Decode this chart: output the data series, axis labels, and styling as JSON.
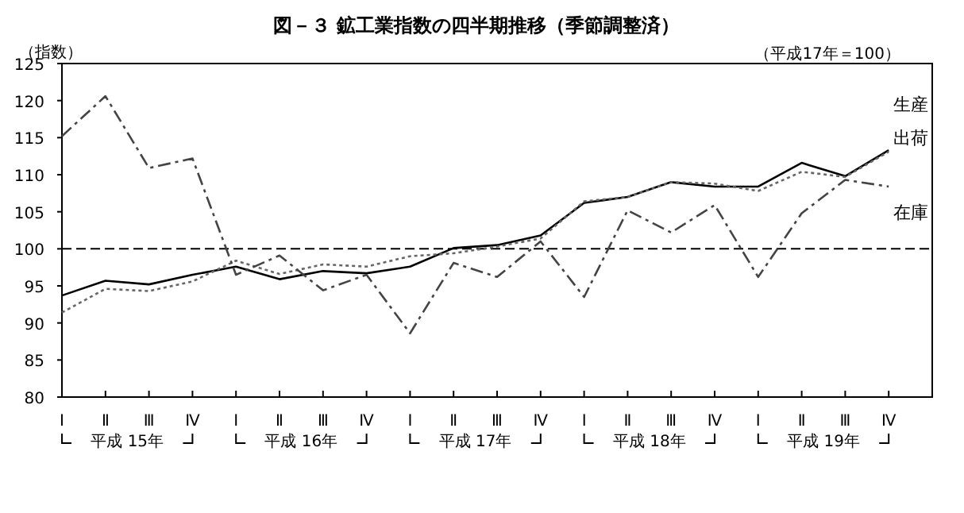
{
  "chart_data": {
    "type": "line",
    "title": "図－３ 鉱工業指数の四半期推移（季節調整済）",
    "ylabel": "（指数）",
    "categories": [
      "Ⅰ",
      "Ⅱ",
      "Ⅲ",
      "Ⅳ",
      "Ⅰ",
      "Ⅱ",
      "Ⅲ",
      "Ⅳ",
      "Ⅰ",
      "Ⅱ",
      "Ⅲ",
      "Ⅳ",
      "Ⅰ",
      "Ⅱ",
      "Ⅲ",
      "Ⅳ",
      "Ⅰ",
      "Ⅱ",
      "Ⅲ",
      "Ⅳ"
    ],
    "annotations": [
      "（平成17年＝100）",
      "平成 15年",
      "平成 16年",
      "平成 17年",
      "平成 18年",
      "平成 19年"
    ],
    "ylim": [
      80,
      125
    ],
    "yticks": [
      80,
      85,
      90,
      95,
      100,
      105,
      110,
      115,
      120,
      125
    ],
    "grid": false,
    "legend": false,
    "marker": "none",
    "ref_lines": [
      {
        "axis": "y",
        "value": 100,
        "line_style": "dashed",
        "color": "#000000"
      }
    ],
    "series": [
      {
        "name": "生産",
        "color": "#000000",
        "line_style": "solid",
        "values": [
          93.7,
          95.7,
          95.2,
          96.5,
          97.6,
          95.9,
          97.0,
          96.7,
          97.6,
          100.1,
          100.5,
          101.8,
          106.2,
          107.0,
          109.0,
          108.4,
          108.4,
          111.6,
          109.8,
          113.3
        ]
      },
      {
        "name": "出荷",
        "color": "#666666",
        "line_style": "dotted",
        "values": [
          91.4,
          94.6,
          94.3,
          95.6,
          98.4,
          96.6,
          97.9,
          97.6,
          99.0,
          99.4,
          100.3,
          101.4,
          106.4,
          107.0,
          109.0,
          108.8,
          107.8,
          110.4,
          109.7,
          113.1
        ]
      },
      {
        "name": "在庫",
        "color": "#444444",
        "line_style": "dashdot",
        "values": [
          115.2,
          120.6,
          110.9,
          112.2,
          96.5,
          99.1,
          94.4,
          96.5,
          88.6,
          98.1,
          96.2,
          101.0,
          93.5,
          105.2,
          102.2,
          105.9,
          96.2,
          104.8,
          109.3,
          108.4
        ]
      }
    ]
  }
}
